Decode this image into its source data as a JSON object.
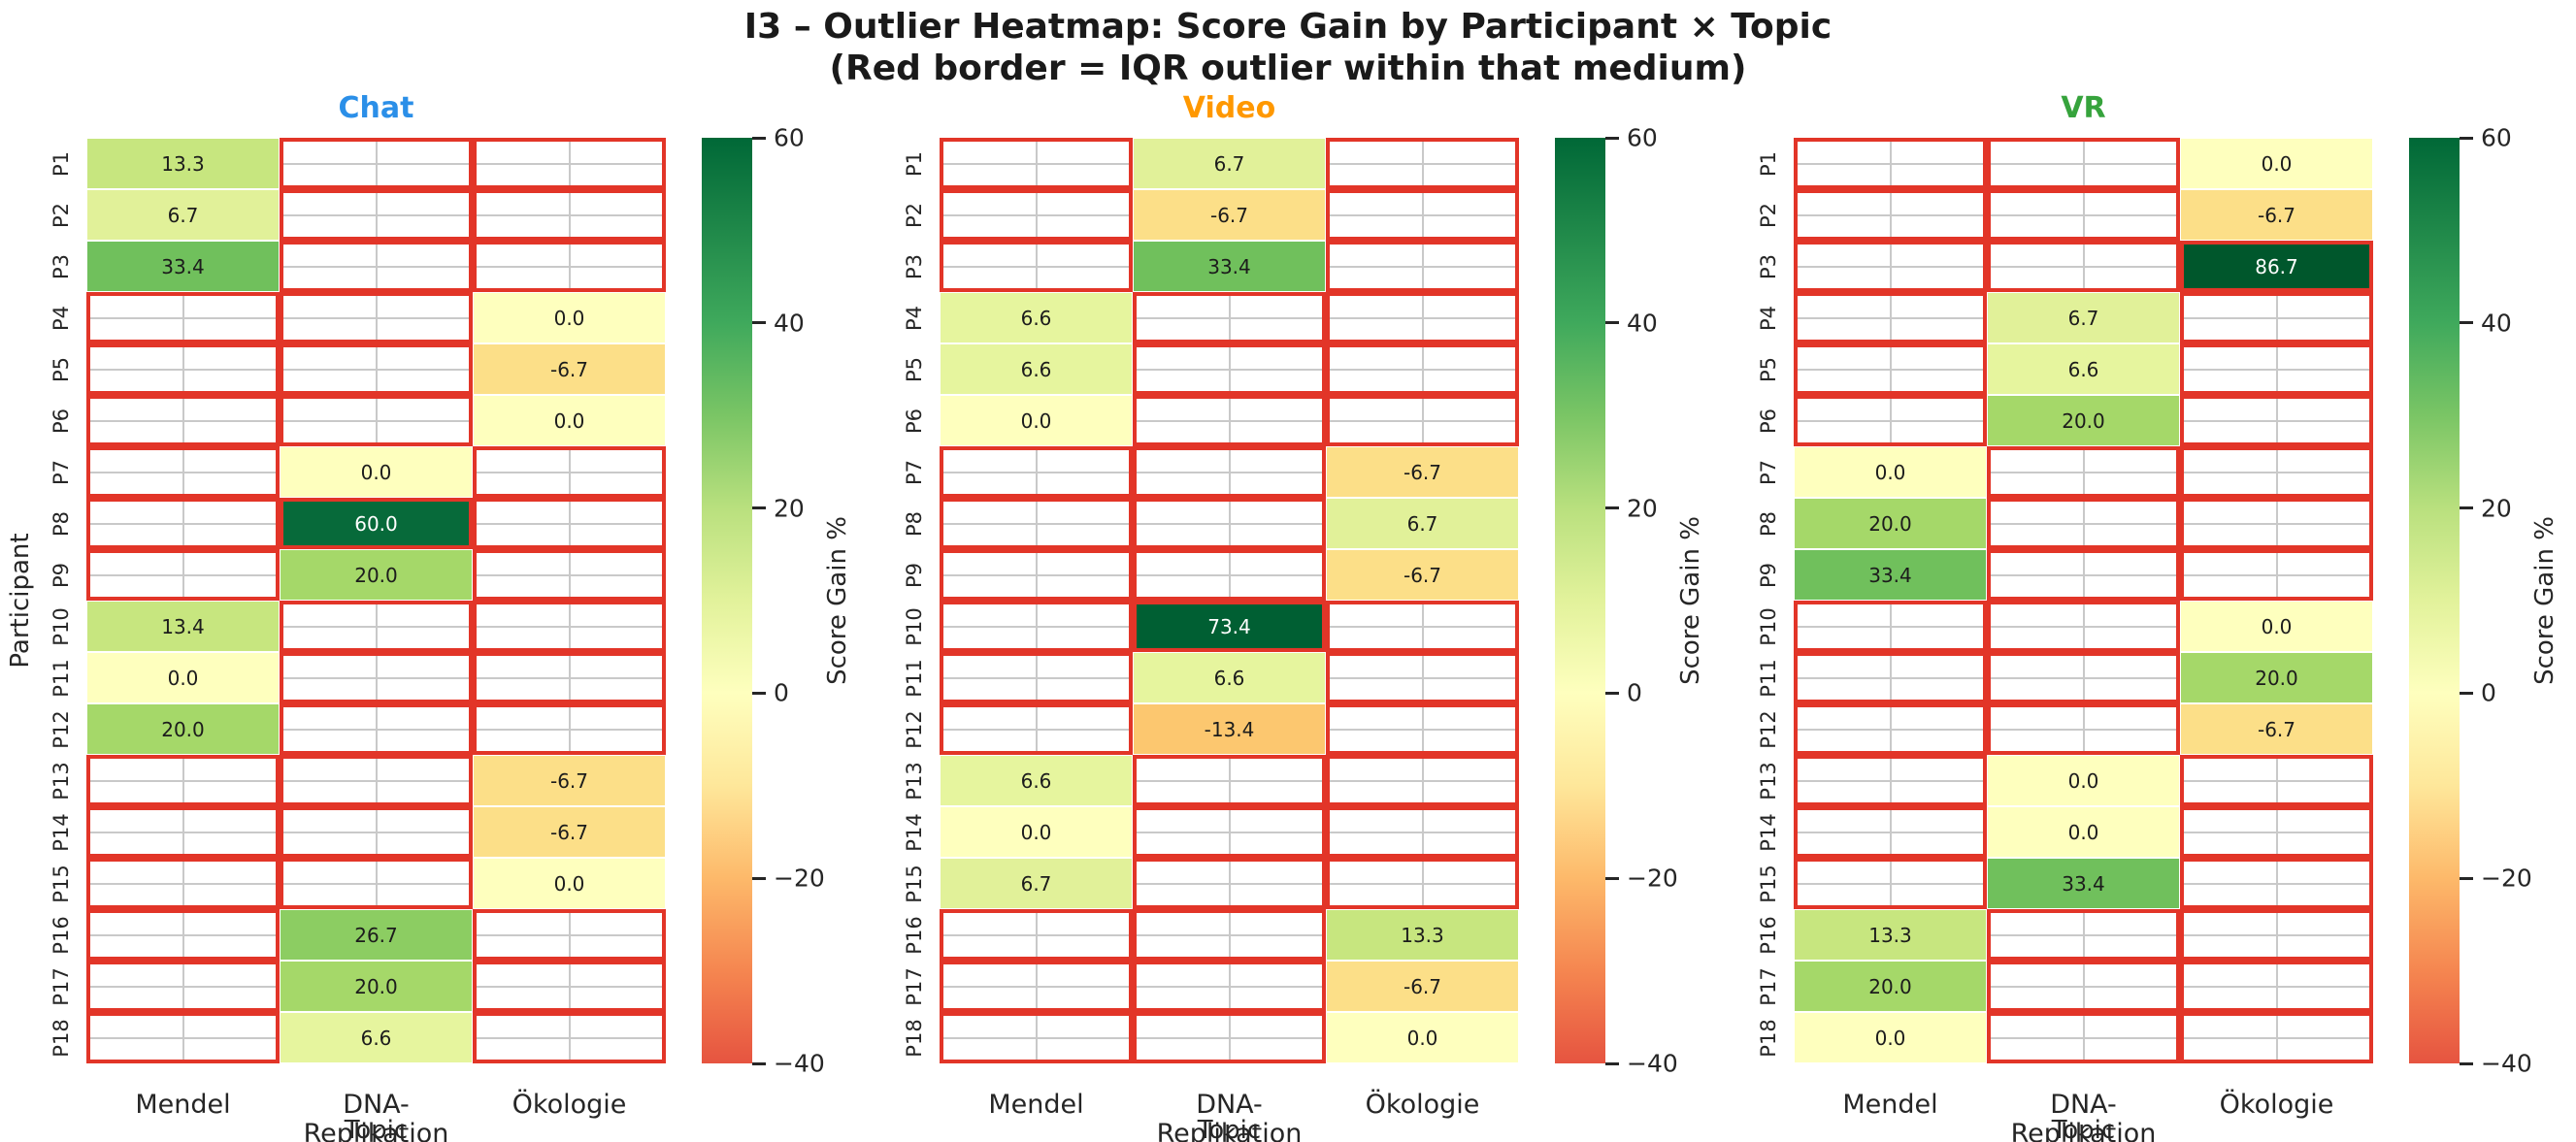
{
  "title": {
    "line1": "I3 – Outlier Heatmap: Score Gain by Participant × Topic",
    "line2": "(Red border = IQR outlier within that medium)"
  },
  "axes": {
    "ylabel": "Participant",
    "xlabel": "Topic",
    "rows": [
      "P1",
      "P2",
      "P3",
      "P4",
      "P5",
      "P6",
      "P7",
      "P8",
      "P9",
      "P10",
      "P11",
      "P12",
      "P13",
      "P14",
      "P15",
      "P16",
      "P17",
      "P18"
    ],
    "columns": [
      "Mendel",
      "DNA-Replikation",
      "Ökologie"
    ]
  },
  "colorbar": {
    "label": "Score Gain %",
    "range": [
      -40,
      60
    ],
    "ticks": [
      {
        "value": 60,
        "label": "60"
      },
      {
        "value": 40,
        "label": "40"
      },
      {
        "value": 20,
        "label": "20"
      },
      {
        "value": 0,
        "label": "0"
      },
      {
        "value": -20,
        "label": "−20"
      },
      {
        "value": -40,
        "label": "−40"
      }
    ],
    "gradient": [
      {
        "at": "0%",
        "color": "#006837"
      },
      {
        "at": "20%",
        "color": "#3fa95c"
      },
      {
        "at": "30%",
        "color": "#7ac565"
      },
      {
        "at": "40%",
        "color": "#b9e07e"
      },
      {
        "at": "50%",
        "color": "#e2f29b"
      },
      {
        "at": "60%",
        "color": "#feffbe"
      },
      {
        "at": "70%",
        "color": "#fee79a"
      },
      {
        "at": "80%",
        "color": "#fdb96a"
      },
      {
        "at": "90%",
        "color": "#f58650"
      },
      {
        "at": "100%",
        "color": "#e65440"
      }
    ]
  },
  "value_colors": {
    "-13.4": {
      "bg": "#fcc76f",
      "fg": "#1c1c1c"
    },
    "-6.7": {
      "bg": "#fcdf88",
      "fg": "#1c1c1c"
    },
    "0.0": {
      "bg": "#feffbe",
      "fg": "#1c1c1c"
    },
    "6.6": {
      "bg": "#e6f59e",
      "fg": "#1c1c1c"
    },
    "6.7": {
      "bg": "#e1f199",
      "fg": "#1c1c1c"
    },
    "13.3": {
      "bg": "#c7e67f",
      "fg": "#1c1c1c"
    },
    "13.4": {
      "bg": "#c7e67f",
      "fg": "#1c1c1c"
    },
    "20.0": {
      "bg": "#a5d869",
      "fg": "#1c1c1c"
    },
    "26.7": {
      "bg": "#8ccd62",
      "fg": "#1c1c1c"
    },
    "33.4": {
      "bg": "#70c05c",
      "fg": "#1c1c1c"
    },
    "60.0": {
      "bg": "#076a3a",
      "fg": "#ffffff"
    },
    "73.4": {
      "bg": "#005f33",
      "fg": "#ffffff"
    },
    "86.7": {
      "bg": "#00572c",
      "fg": "#ffffff"
    }
  },
  "style": {
    "outline_red": "#e23528",
    "grid_line": "#c9c9c9",
    "background": "#ffffff"
  },
  "chart_data": [
    {
      "type": "heatmap",
      "title": "Chat",
      "title_color": "#2b8fe8",
      "xlabel": "Topic",
      "ylabel": "Participant",
      "rows": [
        "P1",
        "P2",
        "P3",
        "P4",
        "P5",
        "P6",
        "P7",
        "P8",
        "P9",
        "P10",
        "P11",
        "P12",
        "P13",
        "P14",
        "P15",
        "P16",
        "P17",
        "P18"
      ],
      "columns": [
        "Mendel",
        "DNA-Replikation",
        "Ökologie"
      ],
      "values": [
        [
          13.3,
          null,
          null
        ],
        [
          6.7,
          null,
          null
        ],
        [
          33.4,
          null,
          null
        ],
        [
          null,
          null,
          0.0
        ],
        [
          null,
          null,
          -6.7
        ],
        [
          null,
          null,
          0.0
        ],
        [
          null,
          0.0,
          null
        ],
        [
          null,
          60.0,
          null
        ],
        [
          null,
          20.0,
          null
        ],
        [
          13.4,
          null,
          null
        ],
        [
          0.0,
          null,
          null
        ],
        [
          20.0,
          null,
          null
        ],
        [
          null,
          null,
          -6.7
        ],
        [
          null,
          null,
          -6.7
        ],
        [
          null,
          null,
          0.0
        ],
        [
          null,
          26.7,
          null
        ],
        [
          null,
          20.0,
          null
        ],
        [
          null,
          6.6,
          null
        ]
      ],
      "outlier": {
        "row": 7,
        "col": 1,
        "participant": "P8",
        "topic": "DNA-Replikation",
        "value": 60.0
      },
      "colorbar_label": "Score Gain %",
      "colorbar_ticks": [
        60,
        40,
        20,
        0,
        -20,
        -40
      ]
    },
    {
      "type": "heatmap",
      "title": "Video",
      "title_color": "#ff9800",
      "xlabel": "Topic",
      "ylabel": "Participant",
      "rows": [
        "P1",
        "P2",
        "P3",
        "P4",
        "P5",
        "P6",
        "P7",
        "P8",
        "P9",
        "P10",
        "P11",
        "P12",
        "P13",
        "P14",
        "P15",
        "P16",
        "P17",
        "P18"
      ],
      "columns": [
        "Mendel",
        "DNA-Replikation",
        "Ökologie"
      ],
      "values": [
        [
          null,
          6.7,
          null
        ],
        [
          null,
          -6.7,
          null
        ],
        [
          null,
          33.4,
          null
        ],
        [
          6.6,
          null,
          null
        ],
        [
          6.6,
          null,
          null
        ],
        [
          0.0,
          null,
          null
        ],
        [
          null,
          null,
          -6.7
        ],
        [
          null,
          null,
          6.7
        ],
        [
          null,
          null,
          -6.7
        ],
        [
          null,
          73.4,
          null
        ],
        [
          null,
          6.6,
          null
        ],
        [
          null,
          -13.4,
          null
        ],
        [
          6.6,
          null,
          null
        ],
        [
          0.0,
          null,
          null
        ],
        [
          6.7,
          null,
          null
        ],
        [
          null,
          null,
          13.3
        ],
        [
          null,
          null,
          -6.7
        ],
        [
          null,
          null,
          0.0
        ]
      ],
      "outlier": {
        "row": 9,
        "col": 1,
        "participant": "P10",
        "topic": "DNA-Replikation",
        "value": 73.4
      },
      "colorbar_label": "Score Gain %",
      "colorbar_ticks": [
        60,
        40,
        20,
        0,
        -20,
        -40
      ]
    },
    {
      "type": "heatmap",
      "title": "VR",
      "title_color": "#36a33c",
      "xlabel": "Topic",
      "ylabel": "Participant",
      "rows": [
        "P1",
        "P2",
        "P3",
        "P4",
        "P5",
        "P6",
        "P7",
        "P8",
        "P9",
        "P10",
        "P11",
        "P12",
        "P13",
        "P14",
        "P15",
        "P16",
        "P17",
        "P18"
      ],
      "columns": [
        "Mendel",
        "DNA-Replikation",
        "Ökologie"
      ],
      "values": [
        [
          null,
          null,
          0.0
        ],
        [
          null,
          null,
          -6.7
        ],
        [
          null,
          null,
          86.7
        ],
        [
          null,
          6.7,
          null
        ],
        [
          null,
          6.6,
          null
        ],
        [
          null,
          20.0,
          null
        ],
        [
          0.0,
          null,
          null
        ],
        [
          20.0,
          null,
          null
        ],
        [
          33.4,
          null,
          null
        ],
        [
          null,
          null,
          0.0
        ],
        [
          null,
          null,
          20.0
        ],
        [
          null,
          null,
          -6.7
        ],
        [
          null,
          0.0,
          null
        ],
        [
          null,
          0.0,
          null
        ],
        [
          null,
          33.4,
          null
        ],
        [
          13.3,
          null,
          null
        ],
        [
          20.0,
          null,
          null
        ],
        [
          0.0,
          null,
          null
        ]
      ],
      "outlier": {
        "row": 2,
        "col": 2,
        "participant": "P3",
        "topic": "Ökologie",
        "value": 86.7
      },
      "colorbar_label": "Score Gain %",
      "colorbar_ticks": [
        60,
        40,
        20,
        0,
        -20,
        -40
      ]
    }
  ]
}
